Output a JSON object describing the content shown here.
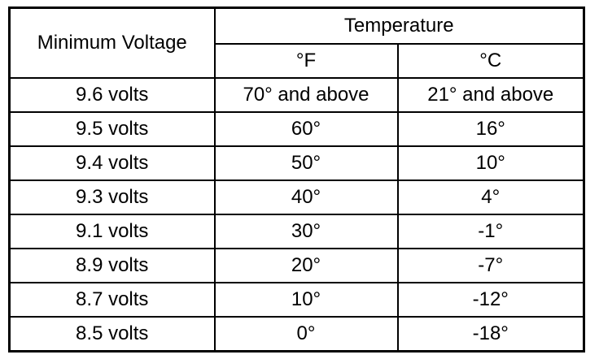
{
  "table": {
    "header": {
      "row_label": "Minimum Voltage",
      "group": "Temperature",
      "columns": [
        "°F",
        "°C"
      ]
    },
    "rows": [
      [
        "9.6 volts",
        "70° and above",
        "21° and above"
      ],
      [
        "9.5 volts",
        "60°",
        "16°"
      ],
      [
        "9.4 volts",
        "50°",
        "10°"
      ],
      [
        "9.3 volts",
        "40°",
        "4°"
      ],
      [
        "9.1 volts",
        "30°",
        "-1°"
      ],
      [
        "8.9 volts",
        "20°",
        "-7°"
      ],
      [
        "8.7 volts",
        "10°",
        "-12°"
      ],
      [
        "8.5 volts",
        "0°",
        "-18°"
      ]
    ]
  }
}
